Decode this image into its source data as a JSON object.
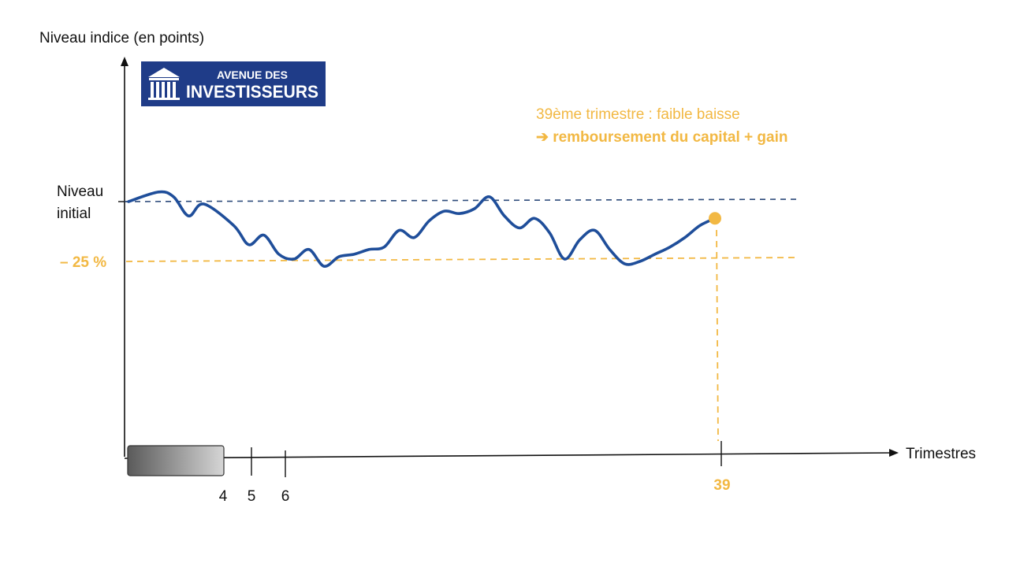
{
  "colors": {
    "accent": "#F2B843",
    "series": "#1F4E9A",
    "reference_line": "#2C4A7A",
    "axis": "#111111",
    "logo_bg": "#1F3C88",
    "grey_box_dark": "#5a5a5a",
    "grey_box_light": "#d6d6d6"
  },
  "logo": {
    "line1": "AVENUE DES",
    "line2": "INVESTISSEURS",
    "icon": "columns-building-icon"
  },
  "annotation": {
    "line1": "39ème trimestre : faible baisse",
    "line2": "➔ remboursement du capital + gain"
  },
  "chart_data": {
    "type": "line",
    "ylabel": "Niveau indice (en points)",
    "xlabel": "Trimestres",
    "y_reference_labels": {
      "initial_line1": "Niveau",
      "initial_line2": "initial",
      "barrier": "– 25 %"
    },
    "y_reference_levels": {
      "initial": 0,
      "barrier": -25
    },
    "x_ticks": [
      "4",
      "5",
      "6",
      "39"
    ],
    "highlight_tick": "39",
    "series": [
      {
        "x": [
          0,
          2,
          3,
          4,
          5,
          7,
          8,
          9,
          10,
          11,
          12,
          13,
          14,
          15,
          16,
          17,
          18,
          19,
          20,
          21,
          22,
          23,
          24,
          25,
          26,
          27,
          28,
          29,
          30,
          31,
          32,
          33,
          34,
          35,
          36,
          37,
          38,
          39
        ],
        "values": [
          0,
          4,
          2,
          -6,
          -1,
          -10,
          -18,
          -14,
          -22,
          -24,
          -20,
          -27,
          -23,
          -22,
          -20,
          -19,
          -12,
          -15,
          -8,
          -4,
          -5,
          -3,
          2,
          -6,
          -11,
          -7,
          -13,
          -24,
          -16,
          -12,
          -20,
          -26,
          -25,
          -22,
          -19,
          -15,
          -10,
          -7
        ]
      }
    ],
    "end_point": {
      "x": 39,
      "value": -7
    }
  }
}
